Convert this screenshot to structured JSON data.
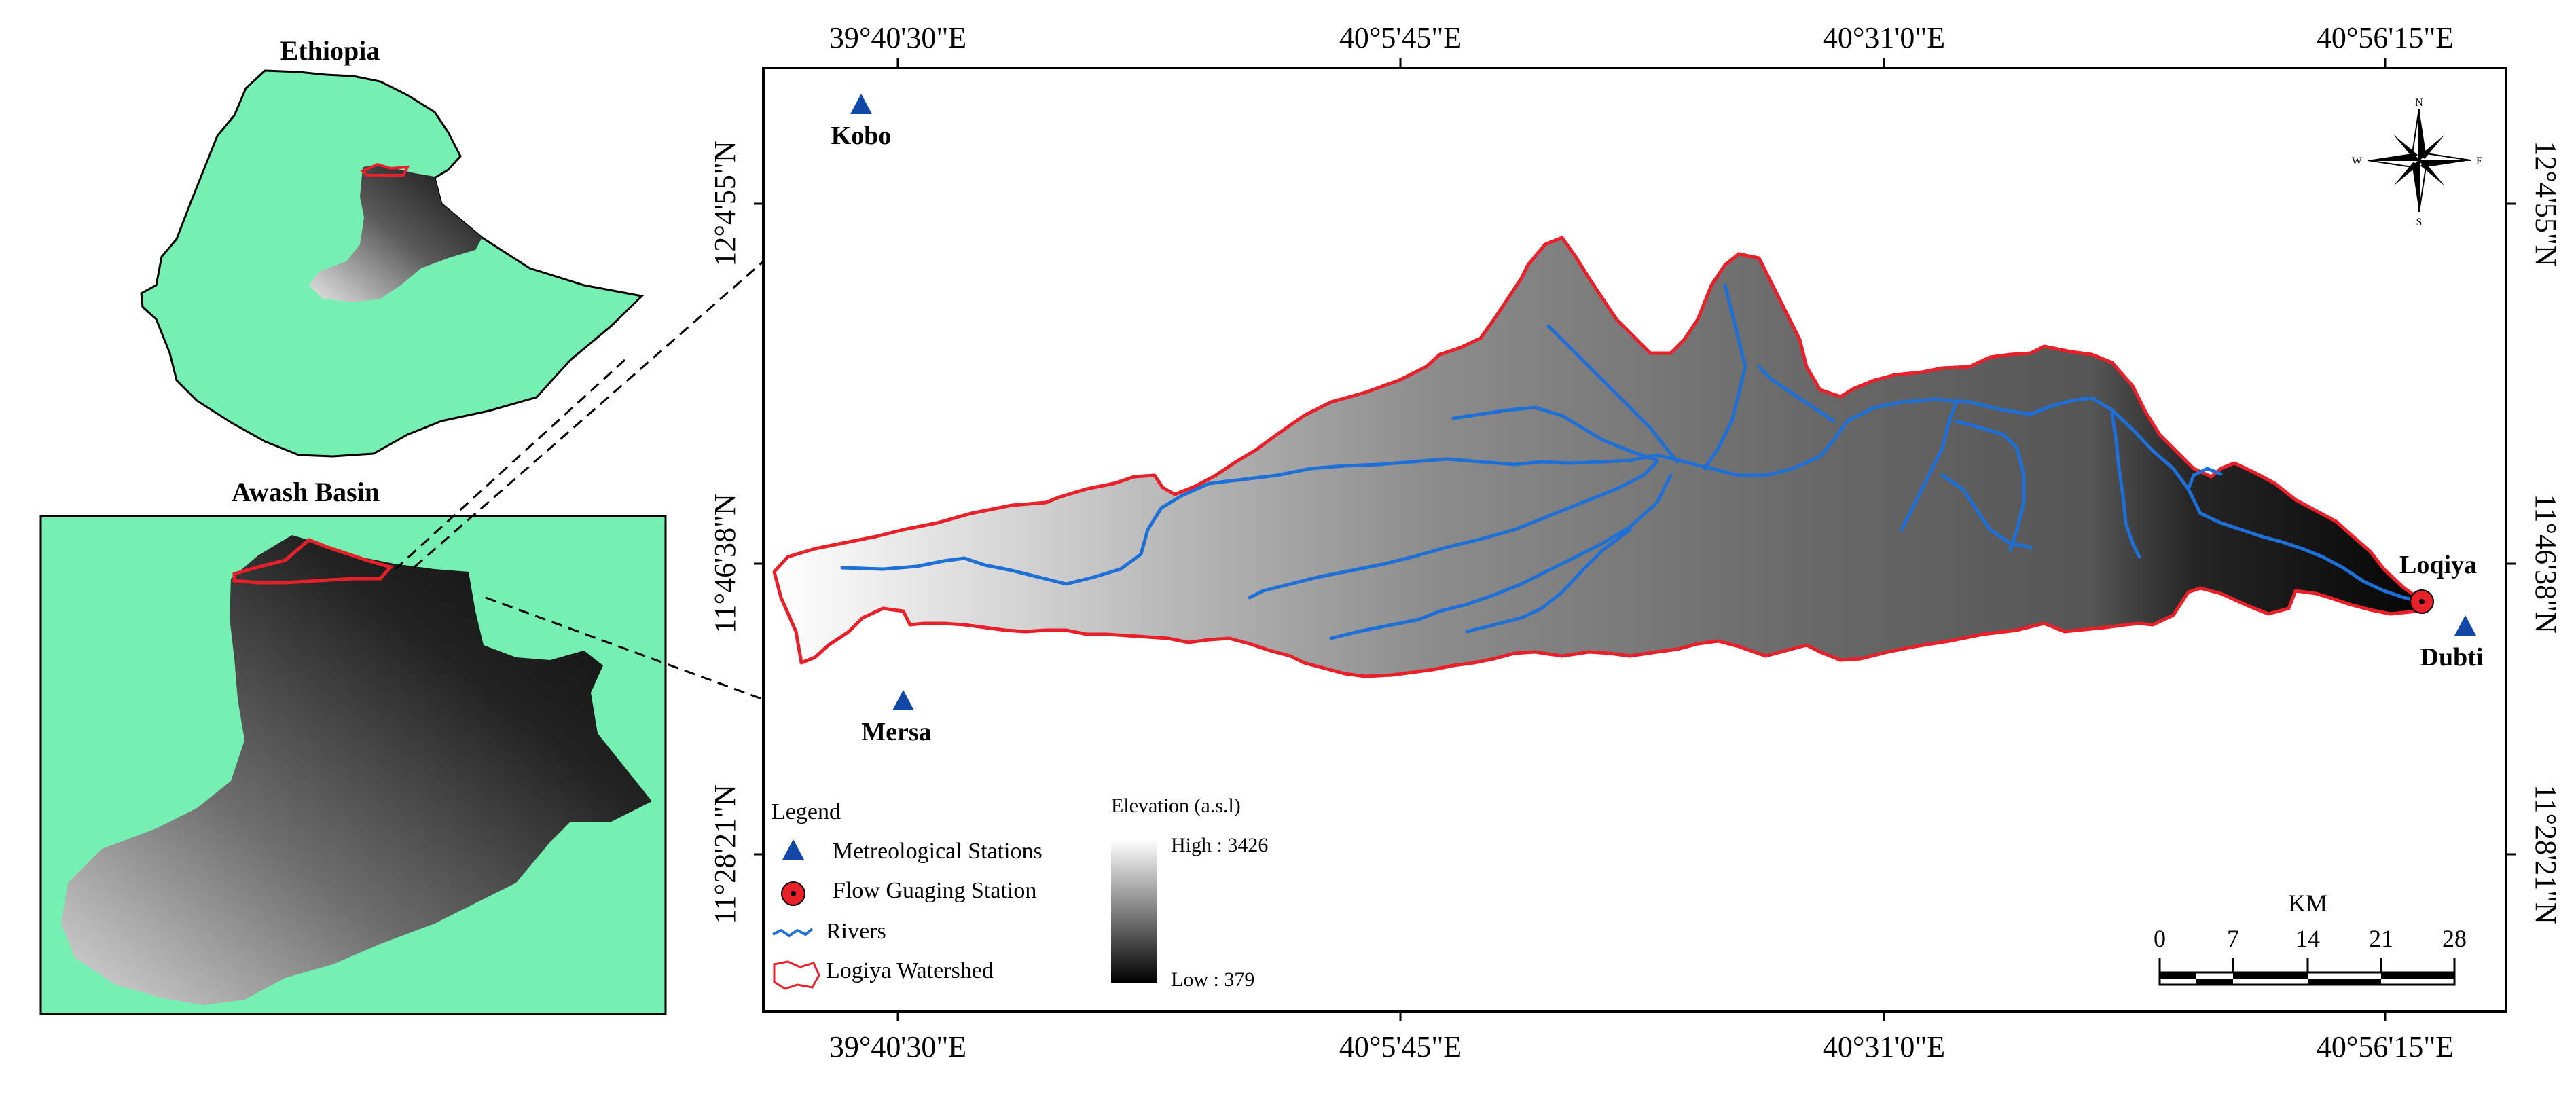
{
  "insets": {
    "ethiopia": {
      "title": "Ethiopia"
    },
    "awash": {
      "title": "Awash Basin"
    }
  },
  "map": {
    "top_lon_labels": [
      "39°40'30\"E",
      "40°5'45\"E",
      "40°31'0\"E",
      "40°56'15\"E"
    ],
    "bottom_lon_labels": [
      "39°40'30\"E",
      "40°5'45\"E",
      "40°31'0\"E",
      "40°56'15\"E"
    ],
    "left_lat_labels": [
      "12°4'55\"N",
      "11°46'38\"N",
      "11°28'21\"N"
    ],
    "right_lat_labels": [
      "12°4'55\"N",
      "11°46'38\"N",
      "11°28'21\"N"
    ],
    "stations": {
      "kobo": "Kobo",
      "mersa": "Mersa",
      "dubti": "Dubti",
      "loqiya": "Loqiya"
    },
    "north_arrow": {
      "n": "N",
      "s": "S",
      "e": "E",
      "w": "W"
    }
  },
  "legend": {
    "title": "Legend",
    "items": [
      "Metreological Stations",
      "Flow Guaging Station",
      "Rivers",
      "Logiya Watershed"
    ],
    "elevation_title": "Elevation (a.s.l)",
    "elevation_high": "High : 3426",
    "elevation_low": "Low : 379"
  },
  "scalebar": {
    "unit": "KM",
    "ticks": [
      "0",
      "7",
      "14",
      "21",
      "28"
    ]
  },
  "colors": {
    "land": "#76efb2",
    "watershed_outline": "#e8202a",
    "river": "#1e6fd6",
    "station": "#1148a8",
    "gauge": "#e8202a"
  }
}
